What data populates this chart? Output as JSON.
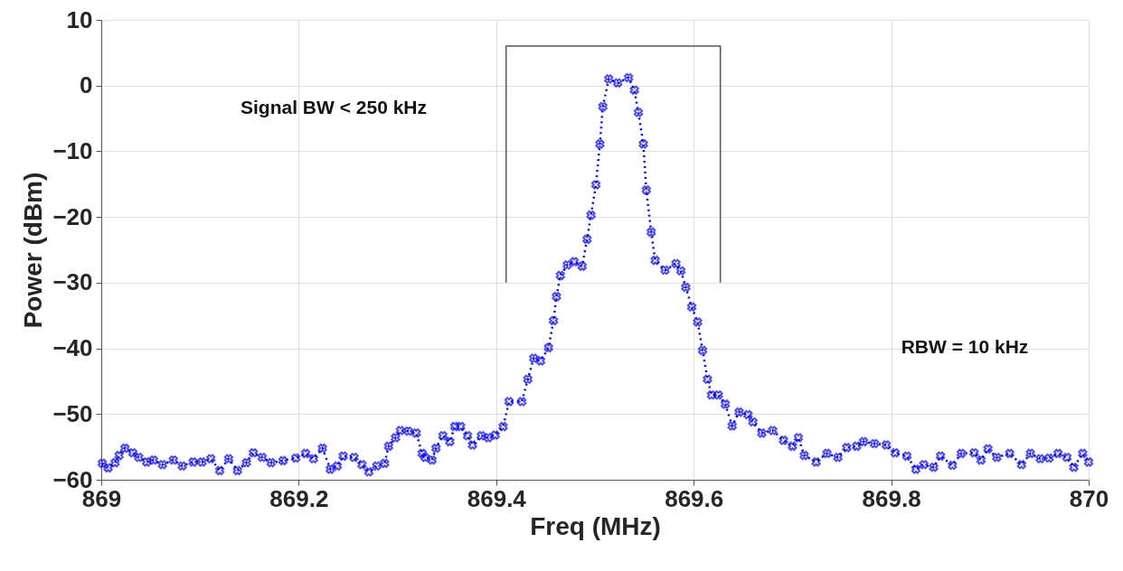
{
  "chart_data": {
    "type": "line",
    "xlabel": "Freq (MHz)",
    "ylabel": "Power (dBm)",
    "annotations": [
      "Signal BW < 250 kHz",
      "RBW = 10 kHz"
    ],
    "xlim": [
      869,
      870
    ],
    "xticks": [
      869,
      869.2,
      869.4,
      869.6,
      869.8,
      870
    ],
    "ylim": [
      -60,
      10
    ],
    "yticks": [
      10,
      0,
      -10,
      -20,
      -30,
      -40,
      -50,
      -60
    ],
    "grid": true,
    "marker": "cross",
    "line_style": "dotted",
    "series": [
      {
        "type": "line",
        "color": "#555555",
        "line_style": "solid",
        "marker": "none",
        "x": [
          869.41,
          869.41,
          869.627,
          869.627
        ],
        "values": [
          -30,
          6,
          6,
          -30
        ]
      },
      {
        "color": "#0000ff",
        "x": [
          869.001,
          869.007,
          869.014,
          869.018,
          869.024,
          869.032,
          869.038,
          869.046,
          869.053,
          869.062,
          869.073,
          869.082,
          869.093,
          869.102,
          869.111,
          869.12,
          869.129,
          869.138,
          869.147,
          869.154,
          869.163,
          869.172,
          869.184,
          869.197,
          869.207,
          869.215,
          869.224,
          869.232,
          869.239,
          869.245,
          869.256,
          869.264,
          869.271,
          869.279,
          869.287,
          869.291,
          869.298,
          869.303,
          869.311,
          869.319,
          869.325,
          869.328,
          869.335,
          869.339,
          869.346,
          869.353,
          869.358,
          869.364,
          869.371,
          869.376,
          869.385,
          869.392,
          869.399,
          869.407,
          869.413,
          869.426,
          869.432,
          869.438,
          869.445,
          869.453,
          869.458,
          869.461,
          869.465,
          869.472,
          869.479,
          869.487,
          869.492,
          869.496,
          869.501,
          869.505,
          869.508,
          869.514,
          869.523,
          869.534,
          869.54,
          869.544,
          869.549,
          869.552,
          869.557,
          869.561,
          869.571,
          869.582,
          869.587,
          869.592,
          869.598,
          869.604,
          869.609,
          869.614,
          869.618,
          869.625,
          869.632,
          869.639,
          869.646,
          869.655,
          869.66,
          869.669,
          869.68,
          869.691,
          869.7,
          869.706,
          869.712,
          869.724,
          869.735,
          869.746,
          869.755,
          869.765,
          869.772,
          869.783,
          869.795,
          869.804,
          869.816,
          869.825,
          869.833,
          869.843,
          869.85,
          869.862,
          869.871,
          869.884,
          869.891,
          869.898,
          869.907,
          869.92,
          869.932,
          869.941,
          869.951,
          869.96,
          869.969,
          869.978,
          869.985,
          869.994,
          870.0
        ],
        "values": [
          -57.5,
          -58.2,
          -57.4,
          -56.3,
          -55.2,
          -55.9,
          -56.6,
          -57.3,
          -57,
          -57.7,
          -57,
          -57.9,
          -57.3,
          -57.3,
          -56.8,
          -58.6,
          -56.8,
          -58.6,
          -57.4,
          -55.9,
          -56.6,
          -57.4,
          -57.1,
          -56.7,
          -56,
          -56.8,
          -55.2,
          -58.4,
          -57.9,
          -56.4,
          -56.6,
          -57.7,
          -58.8,
          -57.9,
          -57.5,
          -54.9,
          -53.6,
          -52.5,
          -52.6,
          -52.9,
          -56,
          -56.6,
          -57,
          -55.2,
          -53.3,
          -54.2,
          -51.9,
          -51.9,
          -53.3,
          -54.7,
          -53.3,
          -53.6,
          -53.2,
          -51.9,
          -48.1,
          -48.1,
          -44.7,
          -41.5,
          -41.9,
          -39.9,
          -35.8,
          -32.1,
          -28.9,
          -27.3,
          -26.8,
          -27.5,
          -23.4,
          -19.7,
          -15.1,
          -8.9,
          -3.2,
          1,
          0.4,
          1.2,
          -0.7,
          -4.1,
          -8.9,
          -15.9,
          -22.3,
          -26.6,
          -28.1,
          -27.1,
          -28.2,
          -30.7,
          -33.7,
          -36,
          -40.3,
          -44.7,
          -47.1,
          -47.1,
          -48.5,
          -51.8,
          -49.7,
          -50.1,
          -51.2,
          -52.9,
          -52.5,
          -54,
          -54.9,
          -53.6,
          -56.3,
          -57.3,
          -56,
          -56.6,
          -55.1,
          -54.9,
          -54.2,
          -54.5,
          -54.7,
          -55.9,
          -56.4,
          -58.4,
          -57.7,
          -58.1,
          -56.4,
          -57.8,
          -56,
          -55.9,
          -57,
          -55.3,
          -56.6,
          -56,
          -57.7,
          -56,
          -56.8,
          -56.7,
          -56,
          -56.6,
          -58.1,
          -56,
          -57.3
        ]
      }
    ]
  }
}
